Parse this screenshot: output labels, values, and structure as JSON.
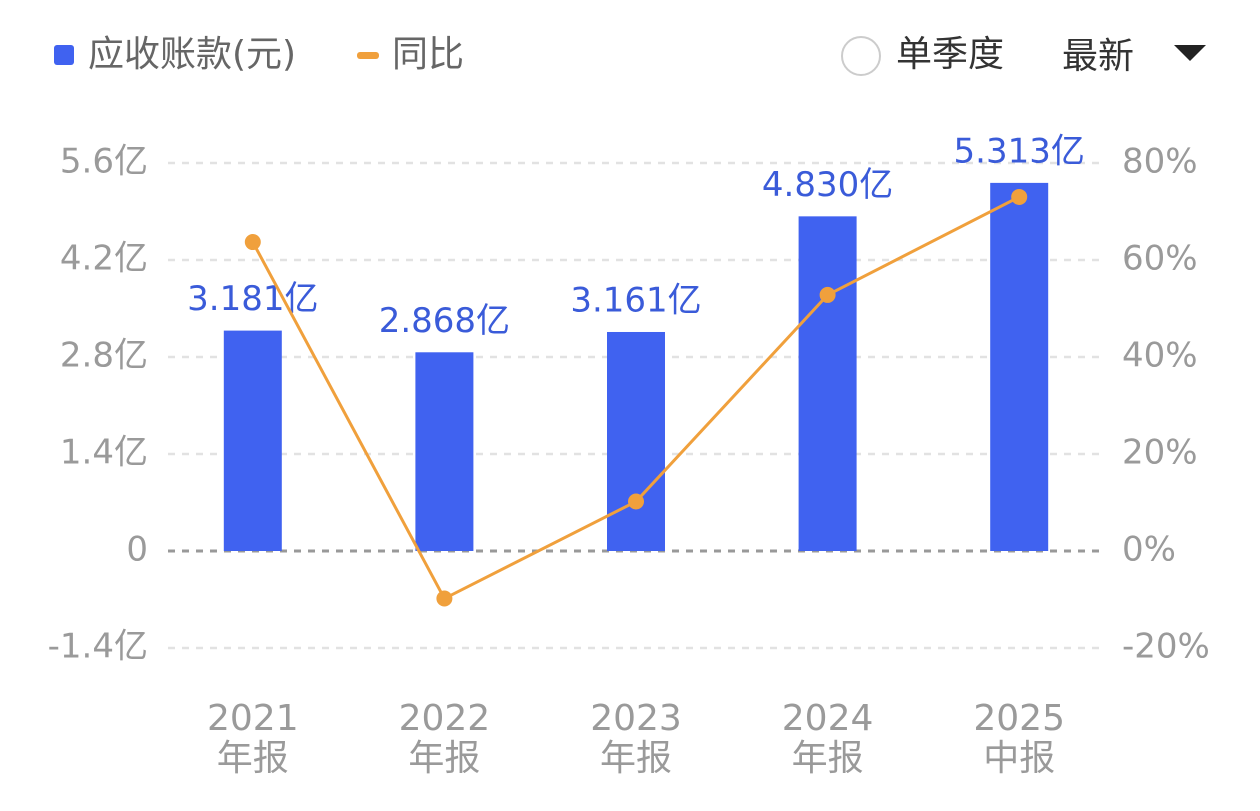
{
  "chart_data": {
    "type": "bar-line",
    "legend_position": "top-left",
    "grid": true,
    "controls": {
      "toggle": "单季度",
      "dropdown": "最新"
    },
    "categories": [
      [
        "2021",
        "年报"
      ],
      [
        "2022",
        "年报"
      ],
      [
        "2023",
        "年报"
      ],
      [
        "2024",
        "年报"
      ],
      [
        "2025",
        "中报"
      ]
    ],
    "series": [
      {
        "name": "应收账款(元)",
        "type": "bar",
        "color": "#4062f0",
        "values": [
          3.181,
          2.868,
          3.161,
          4.83,
          5.313
        ],
        "value_labels": [
          "3.181亿",
          "2.868亿",
          "3.161亿",
          "4.830亿",
          "5.313亿"
        ]
      },
      {
        "name": "同比",
        "type": "line",
        "axis": "y2",
        "color": "#f0a03c",
        "values": [
          63.7,
          -9.8,
          10.2,
          52.8,
          73.0
        ]
      }
    ],
    "ylim": [
      -1.4,
      5.6
    ],
    "yticks": [
      {
        "value": -1.4,
        "label": "-1.4亿"
      },
      0,
      {
        "value": 1.4,
        "label": "1.4亿"
      },
      {
        "value": 2.8,
        "label": "2.8亿"
      },
      {
        "value": 4.2,
        "label": "4.2亿"
      },
      {
        "value": 5.6,
        "label": "5.6亿"
      }
    ],
    "y2lim": [
      -20,
      80
    ],
    "y2ticks": [
      {
        "value": -20,
        "label": "-20%"
      },
      {
        "value": 0,
        "label": "0%"
      },
      {
        "value": 20,
        "label": "20%"
      },
      {
        "value": 40,
        "label": "40%"
      },
      {
        "value": 60,
        "label": "60%"
      },
      {
        "value": 80,
        "label": "80%"
      }
    ]
  }
}
